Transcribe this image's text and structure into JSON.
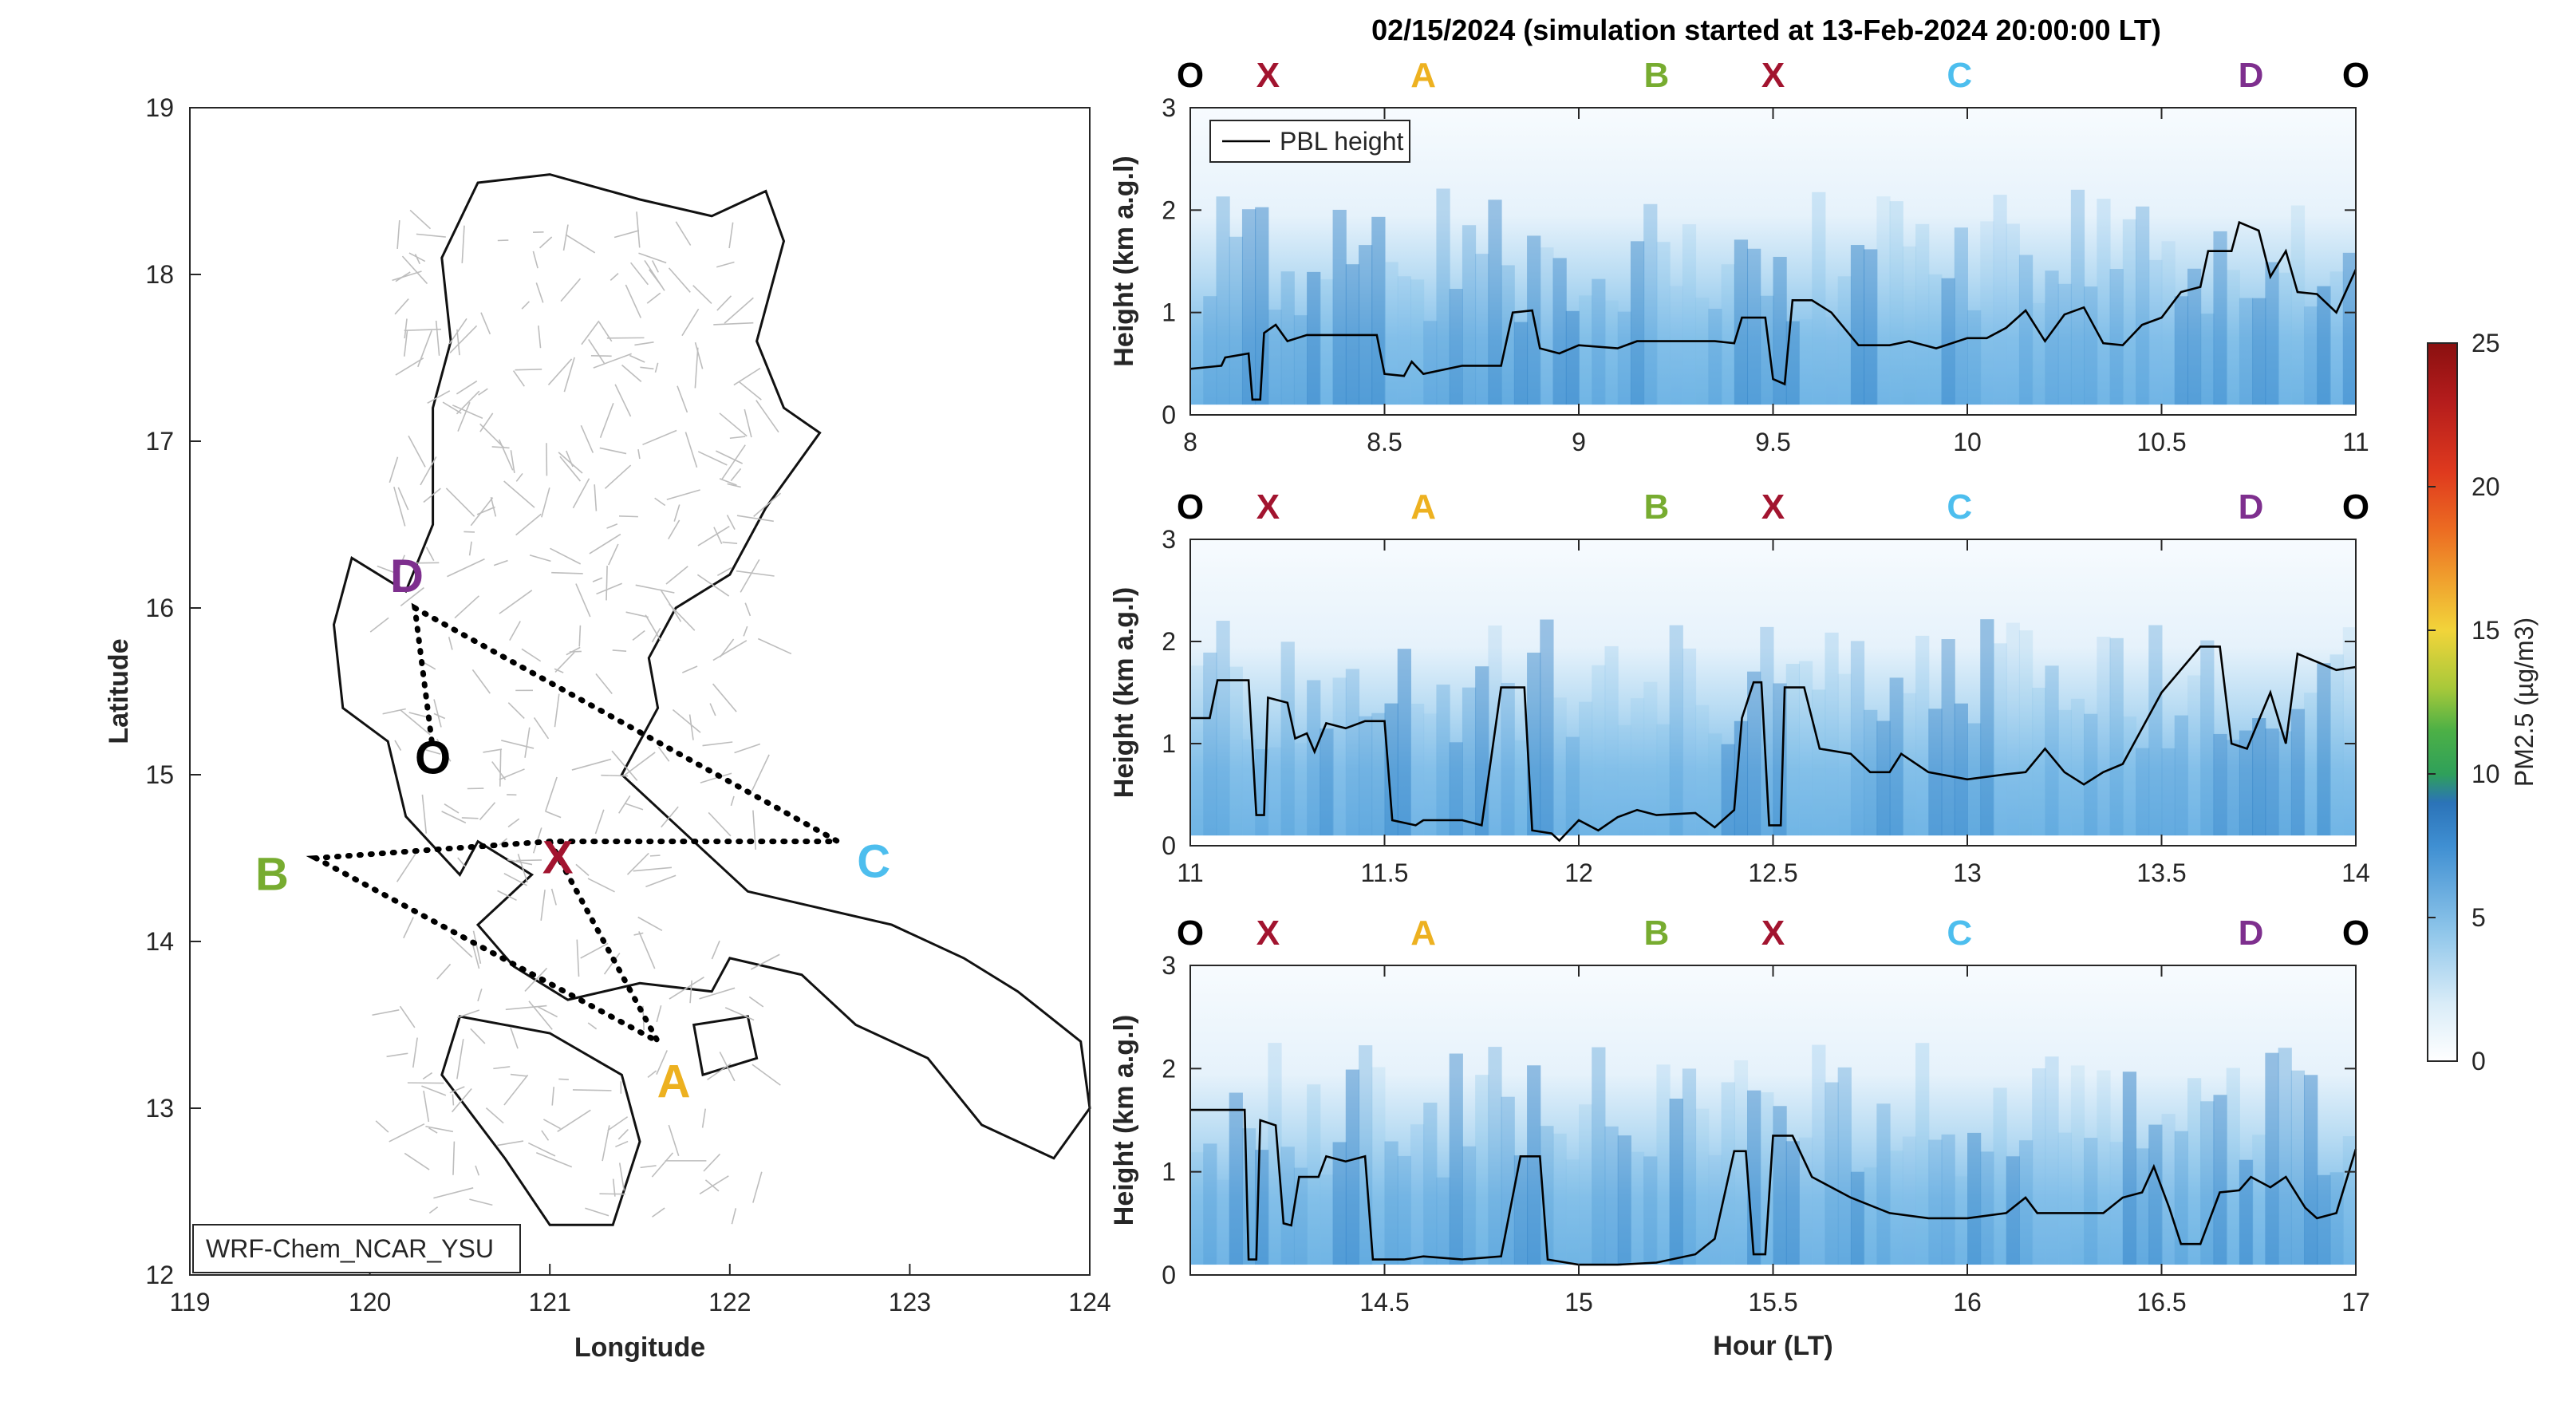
{
  "figure_title": "02/15/2024 (simulation started at 13-Feb-2024 20:00:00 LT)",
  "colors": {
    "O": "#000000",
    "X": "#a2142f",
    "A": "#edb120",
    "B": "#77ac30",
    "C": "#4dbeee",
    "D": "#7e2f8e"
  },
  "chart_data": [
    {
      "type": "map",
      "xlabel": "Longitude",
      "ylabel": "Latitude",
      "xlim": [
        119,
        124
      ],
      "ylim": [
        12,
        19
      ],
      "xticks": [
        "119",
        "120",
        "121",
        "122",
        "123",
        "124"
      ],
      "yticks": [
        "12",
        "13",
        "14",
        "15",
        "16",
        "17",
        "18",
        "19"
      ],
      "model_label": "WRF-Chem_NCAR_YSU",
      "points": [
        {
          "label": "O",
          "lon": 120.35,
          "lat": 15.15
        },
        {
          "label": "X",
          "lon": 121.0,
          "lat": 14.6
        },
        {
          "label": "A",
          "lon": 121.6,
          "lat": 13.4
        },
        {
          "label": "B",
          "lon": 119.7,
          "lat": 14.5
        },
        {
          "label": "C",
          "lon": 122.6,
          "lat": 14.6
        },
        {
          "label": "D",
          "lon": 120.25,
          "lat": 16.0
        }
      ],
      "route": [
        "X",
        "A",
        "B",
        "X",
        "C",
        "D",
        "O"
      ]
    },
    {
      "type": "heatmap",
      "panel": 1,
      "ylabel": "Height (km a.g.l)",
      "xlim": [
        8,
        11
      ],
      "ylim": [
        0,
        3
      ],
      "xticks": [
        "8",
        "8.5",
        "9",
        "9.5",
        "10",
        "10.5",
        "11"
      ],
      "yticks": [
        "0",
        "1",
        "2",
        "3"
      ],
      "top_labels": [
        {
          "label": "O",
          "x": 8.0
        },
        {
          "label": "X",
          "x": 8.2
        },
        {
          "label": "A",
          "x": 8.6
        },
        {
          "label": "B",
          "x": 9.2
        },
        {
          "label": "X",
          "x": 9.5
        },
        {
          "label": "C",
          "x": 9.98
        },
        {
          "label": "D",
          "x": 10.73
        },
        {
          "label": "O",
          "x": 11.0
        }
      ],
      "legend": "PBL height",
      "pbl_height": [
        [
          8.0,
          0.45
        ],
        [
          8.08,
          0.48
        ],
        [
          8.09,
          0.56
        ],
        [
          8.15,
          0.6
        ],
        [
          8.16,
          0.15
        ],
        [
          8.18,
          0.15
        ],
        [
          8.19,
          0.8
        ],
        [
          8.22,
          0.88
        ],
        [
          8.25,
          0.72
        ],
        [
          8.3,
          0.78
        ],
        [
          8.37,
          0.78
        ],
        [
          8.48,
          0.78
        ],
        [
          8.5,
          0.4
        ],
        [
          8.55,
          0.38
        ],
        [
          8.57,
          0.52
        ],
        [
          8.6,
          0.4
        ],
        [
          8.7,
          0.48
        ],
        [
          8.8,
          0.48
        ],
        [
          8.83,
          1.0
        ],
        [
          8.88,
          1.02
        ],
        [
          8.9,
          0.65
        ],
        [
          8.95,
          0.6
        ],
        [
          9.0,
          0.68
        ],
        [
          9.1,
          0.65
        ],
        [
          9.15,
          0.72
        ],
        [
          9.35,
          0.72
        ],
        [
          9.4,
          0.7
        ],
        [
          9.42,
          0.95
        ],
        [
          9.48,
          0.95
        ],
        [
          9.5,
          0.35
        ],
        [
          9.53,
          0.3
        ],
        [
          9.55,
          1.12
        ],
        [
          9.6,
          1.12
        ],
        [
          9.65,
          1.0
        ],
        [
          9.72,
          0.68
        ],
        [
          9.8,
          0.68
        ],
        [
          9.85,
          0.72
        ],
        [
          9.92,
          0.65
        ],
        [
          10.0,
          0.75
        ],
        [
          10.05,
          0.75
        ],
        [
          10.1,
          0.85
        ],
        [
          10.15,
          1.02
        ],
        [
          10.2,
          0.72
        ],
        [
          10.25,
          0.98
        ],
        [
          10.3,
          1.05
        ],
        [
          10.35,
          0.7
        ],
        [
          10.4,
          0.68
        ],
        [
          10.45,
          0.88
        ],
        [
          10.5,
          0.95
        ],
        [
          10.55,
          1.2
        ],
        [
          10.6,
          1.25
        ],
        [
          10.62,
          1.6
        ],
        [
          10.68,
          1.6
        ],
        [
          10.7,
          1.88
        ],
        [
          10.75,
          1.8
        ],
        [
          10.78,
          1.35
        ],
        [
          10.82,
          1.6
        ],
        [
          10.85,
          1.2
        ],
        [
          10.9,
          1.18
        ],
        [
          10.95,
          1.0
        ],
        [
          11.0,
          1.42
        ]
      ],
      "pm25_colorbar": {
        "label": "PM2.5 (µg/m3)",
        "min": 0,
        "max": 25,
        "ticks": [
          "0",
          "5",
          "10",
          "15",
          "20",
          "25"
        ]
      }
    },
    {
      "type": "heatmap",
      "panel": 2,
      "ylabel": "Height (km a.g.l)",
      "xlim": [
        11,
        14
      ],
      "ylim": [
        0,
        3
      ],
      "xticks": [
        "11",
        "11.5",
        "12",
        "12.5",
        "13",
        "13.5",
        "14"
      ],
      "yticks": [
        "0",
        "1",
        "2",
        "3"
      ],
      "top_labels": [
        {
          "label": "O",
          "x": 11.0
        },
        {
          "label": "X",
          "x": 11.2
        },
        {
          "label": "A",
          "x": 11.6
        },
        {
          "label": "B",
          "x": 12.2
        },
        {
          "label": "X",
          "x": 12.5
        },
        {
          "label": "C",
          "x": 12.98
        },
        {
          "label": "D",
          "x": 13.73
        },
        {
          "label": "O",
          "x": 14.0
        }
      ],
      "pbl_height": [
        [
          11.0,
          1.25
        ],
        [
          11.05,
          1.25
        ],
        [
          11.07,
          1.62
        ],
        [
          11.15,
          1.62
        ],
        [
          11.17,
          0.3
        ],
        [
          11.19,
          0.3
        ],
        [
          11.2,
          1.45
        ],
        [
          11.25,
          1.4
        ],
        [
          11.27,
          1.05
        ],
        [
          11.3,
          1.1
        ],
        [
          11.32,
          0.92
        ],
        [
          11.35,
          1.2
        ],
        [
          11.4,
          1.15
        ],
        [
          11.45,
          1.22
        ],
        [
          11.5,
          1.22
        ],
        [
          11.52,
          0.25
        ],
        [
          11.58,
          0.2
        ],
        [
          11.6,
          0.25
        ],
        [
          11.7,
          0.25
        ],
        [
          11.75,
          0.2
        ],
        [
          11.8,
          1.55
        ],
        [
          11.86,
          1.55
        ],
        [
          11.88,
          0.15
        ],
        [
          11.93,
          0.12
        ],
        [
          11.95,
          0.05
        ],
        [
          12.0,
          0.25
        ],
        [
          12.05,
          0.15
        ],
        [
          12.1,
          0.28
        ],
        [
          12.15,
          0.35
        ],
        [
          12.2,
          0.3
        ],
        [
          12.3,
          0.32
        ],
        [
          12.35,
          0.18
        ],
        [
          12.4,
          0.35
        ],
        [
          12.42,
          1.25
        ],
        [
          12.45,
          1.6
        ],
        [
          12.47,
          1.6
        ],
        [
          12.49,
          0.2
        ],
        [
          12.52,
          0.2
        ],
        [
          12.53,
          1.55
        ],
        [
          12.58,
          1.55
        ],
        [
          12.62,
          0.95
        ],
        [
          12.7,
          0.9
        ],
        [
          12.75,
          0.72
        ],
        [
          12.8,
          0.72
        ],
        [
          12.83,
          0.9
        ],
        [
          12.9,
          0.72
        ],
        [
          13.0,
          0.65
        ],
        [
          13.1,
          0.7
        ],
        [
          13.15,
          0.72
        ],
        [
          13.2,
          0.95
        ],
        [
          13.25,
          0.72
        ],
        [
          13.3,
          0.6
        ],
        [
          13.35,
          0.72
        ],
        [
          13.4,
          0.8
        ],
        [
          13.5,
          1.5
        ],
        [
          13.6,
          1.95
        ],
        [
          13.65,
          1.95
        ],
        [
          13.68,
          1.0
        ],
        [
          13.72,
          0.95
        ],
        [
          13.78,
          1.5
        ],
        [
          13.82,
          1.0
        ],
        [
          13.85,
          1.88
        ],
        [
          13.9,
          1.8
        ],
        [
          13.95,
          1.72
        ],
        [
          14.0,
          1.75
        ]
      ]
    },
    {
      "type": "heatmap",
      "panel": 3,
      "ylabel": "Height (km a.g.l)",
      "xlabel": "Hour (LT)",
      "xlim": [
        14,
        17
      ],
      "ylim": [
        0,
        3
      ],
      "xticks": [
        "14.5",
        "15",
        "15.5",
        "16",
        "16.5",
        "17"
      ],
      "yticks": [
        "0",
        "1",
        "2",
        "3"
      ],
      "top_labels": [
        {
          "label": "O",
          "x": 14.0
        },
        {
          "label": "X",
          "x": 14.2
        },
        {
          "label": "A",
          "x": 14.6
        },
        {
          "label": "B",
          "x": 15.2
        },
        {
          "label": "X",
          "x": 15.5
        },
        {
          "label": "C",
          "x": 15.98
        },
        {
          "label": "D",
          "x": 16.73
        },
        {
          "label": "O",
          "x": 17.0
        }
      ],
      "pbl_height": [
        [
          14.0,
          1.6
        ],
        [
          14.14,
          1.6
        ],
        [
          14.15,
          0.15
        ],
        [
          14.17,
          0.15
        ],
        [
          14.18,
          1.5
        ],
        [
          14.22,
          1.45
        ],
        [
          14.24,
          0.5
        ],
        [
          14.26,
          0.48
        ],
        [
          14.28,
          0.95
        ],
        [
          14.33,
          0.95
        ],
        [
          14.35,
          1.15
        ],
        [
          14.4,
          1.1
        ],
        [
          14.45,
          1.15
        ],
        [
          14.47,
          0.15
        ],
        [
          14.55,
          0.15
        ],
        [
          14.6,
          0.18
        ],
        [
          14.7,
          0.15
        ],
        [
          14.8,
          0.18
        ],
        [
          14.85,
          1.15
        ],
        [
          14.9,
          1.15
        ],
        [
          14.92,
          0.15
        ],
        [
          15.0,
          0.1
        ],
        [
          15.1,
          0.1
        ],
        [
          15.2,
          0.12
        ],
        [
          15.3,
          0.2
        ],
        [
          15.35,
          0.35
        ],
        [
          15.4,
          1.2
        ],
        [
          15.43,
          1.2
        ],
        [
          15.45,
          0.2
        ],
        [
          15.48,
          0.2
        ],
        [
          15.5,
          1.35
        ],
        [
          15.55,
          1.35
        ],
        [
          15.6,
          0.95
        ],
        [
          15.7,
          0.75
        ],
        [
          15.8,
          0.6
        ],
        [
          15.9,
          0.55
        ],
        [
          16.0,
          0.55
        ],
        [
          16.1,
          0.6
        ],
        [
          16.15,
          0.75
        ],
        [
          16.18,
          0.6
        ],
        [
          16.25,
          0.6
        ],
        [
          16.35,
          0.6
        ],
        [
          16.4,
          0.75
        ],
        [
          16.45,
          0.8
        ],
        [
          16.48,
          1.05
        ],
        [
          16.52,
          0.65
        ],
        [
          16.55,
          0.3
        ],
        [
          16.6,
          0.3
        ],
        [
          16.65,
          0.8
        ],
        [
          16.7,
          0.82
        ],
        [
          16.73,
          0.95
        ],
        [
          16.78,
          0.85
        ],
        [
          16.82,
          0.95
        ],
        [
          16.87,
          0.65
        ],
        [
          16.9,
          0.55
        ],
        [
          16.95,
          0.6
        ],
        [
          17.0,
          1.22
        ]
      ]
    }
  ]
}
